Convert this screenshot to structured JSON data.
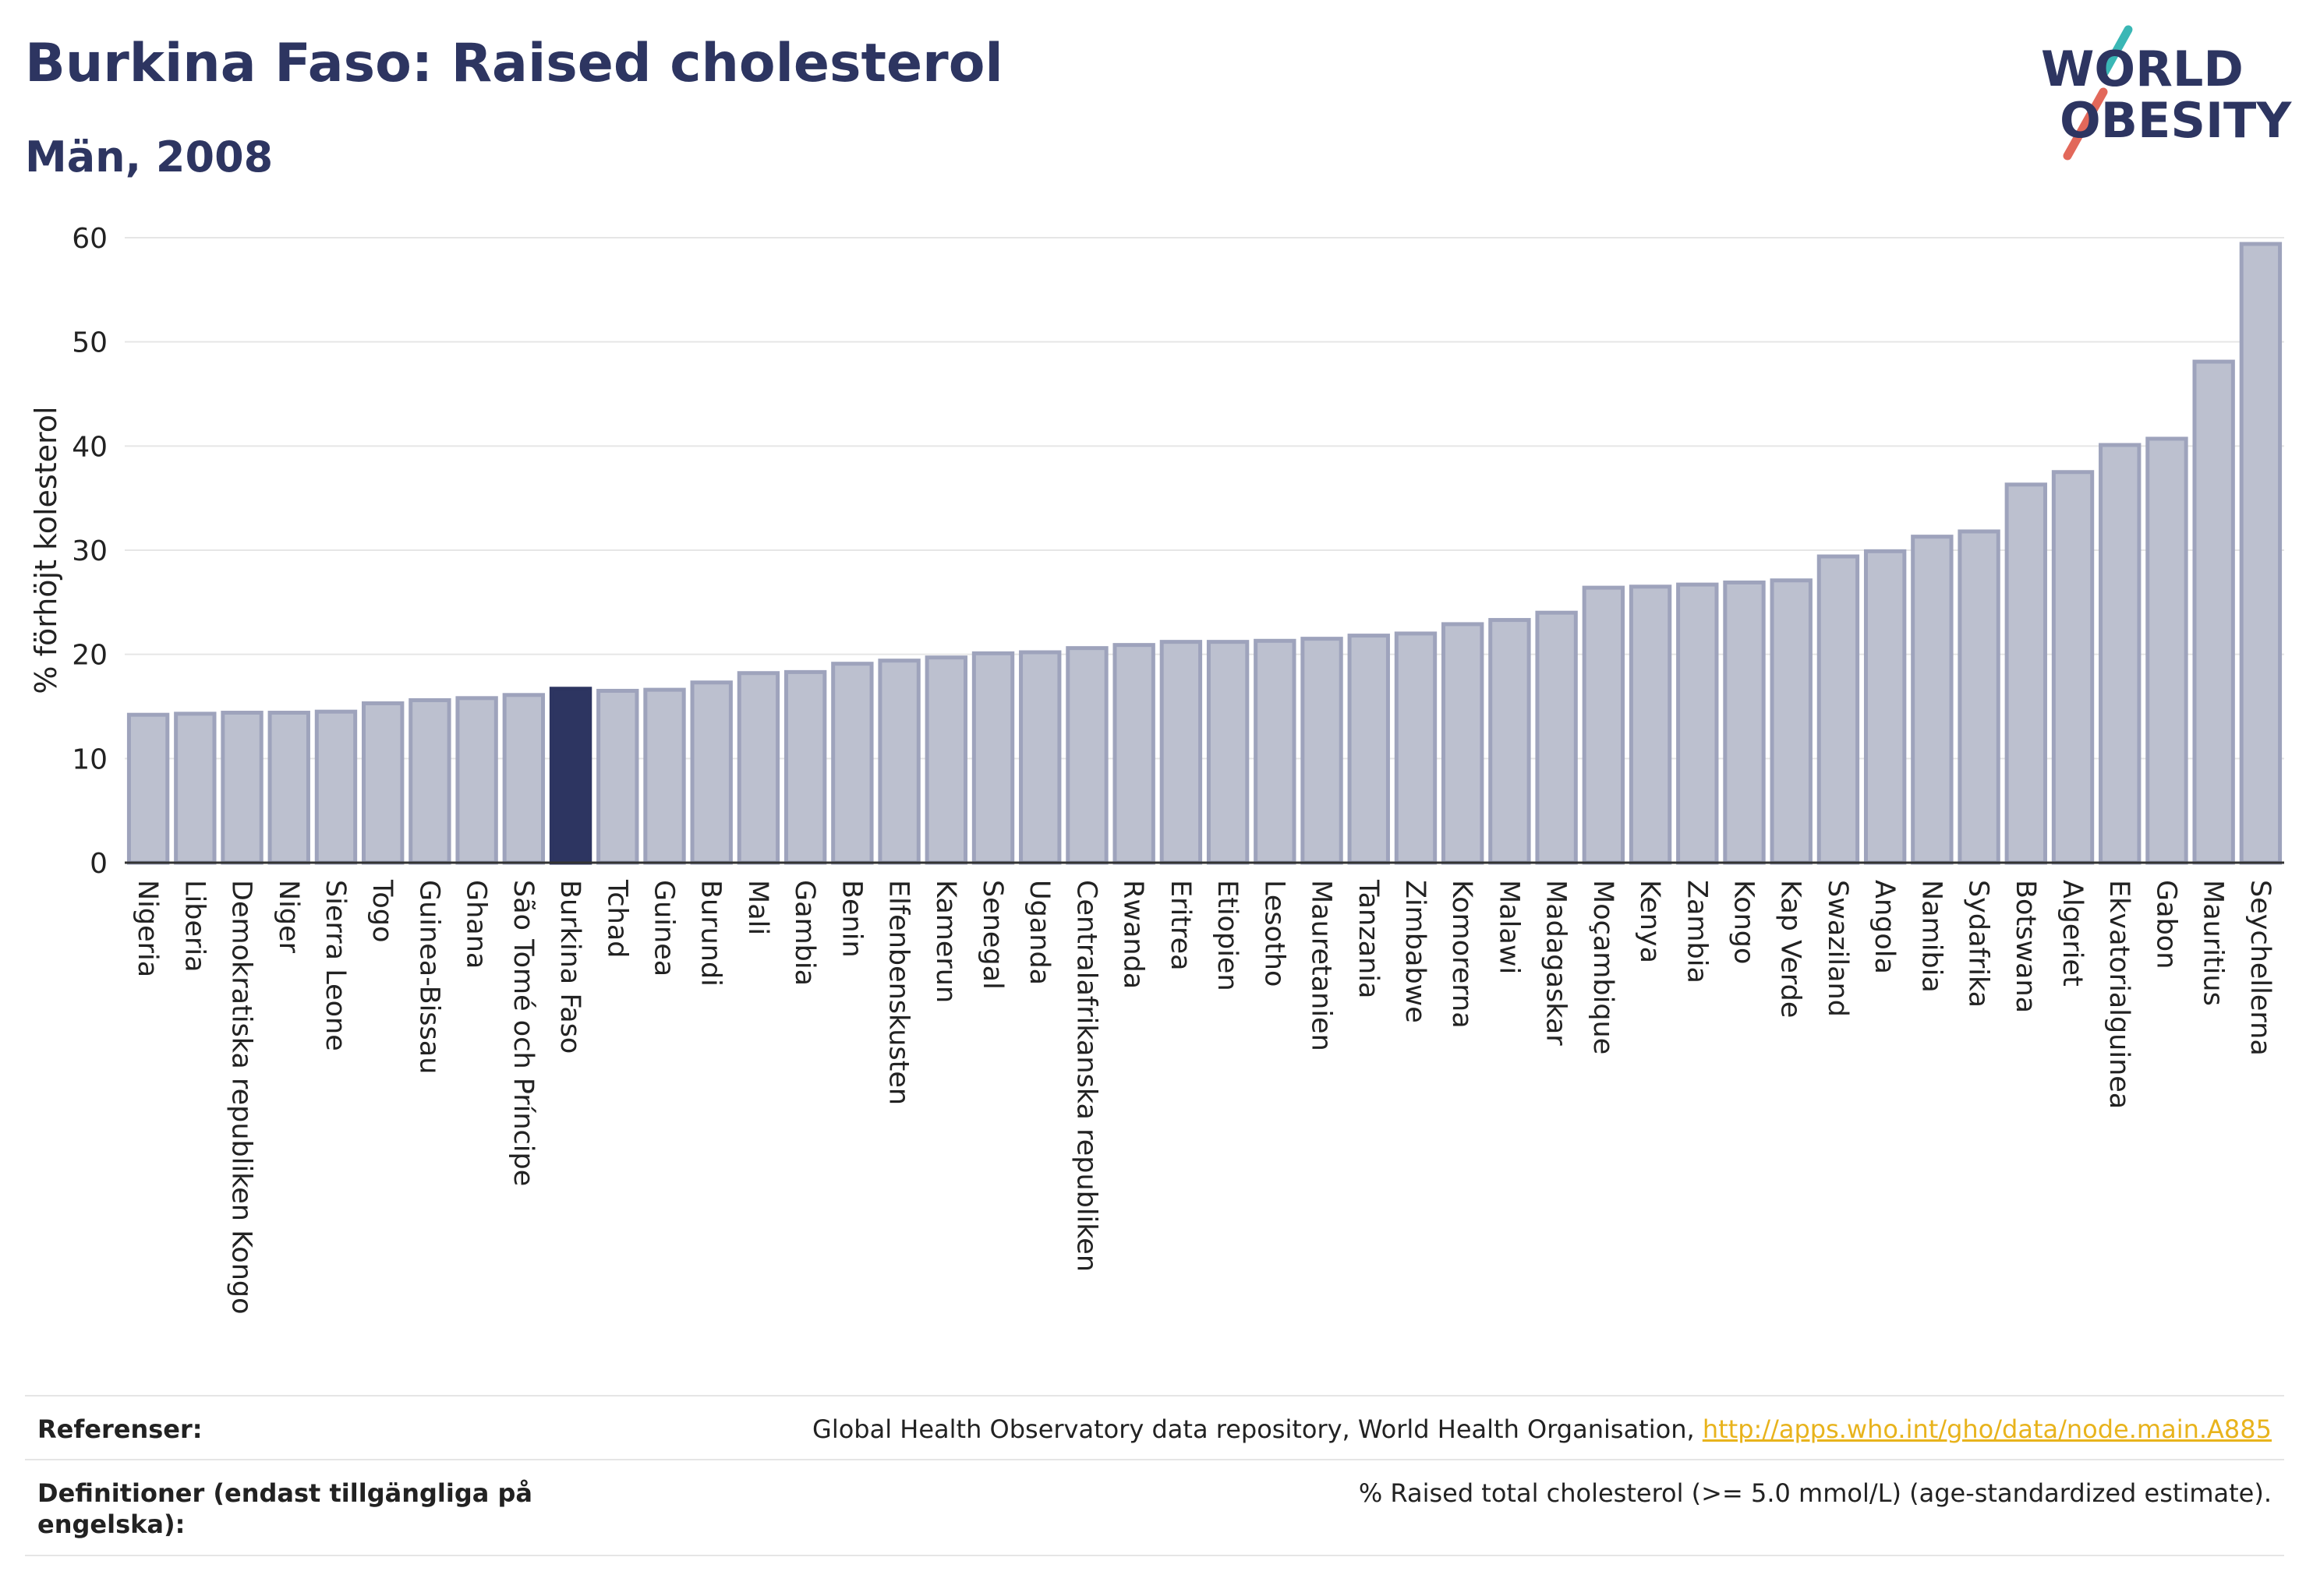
{
  "header": {
    "title": "Burkina Faso: Raised cholesterol",
    "subtitle": "Män, 2008"
  },
  "logo": {
    "line1": "WORLD",
    "line2": "OBESITY"
  },
  "colors": {
    "highlight": "#2d3561",
    "bar_fill": "#bcc0cf",
    "bar_stroke": "#9ea3bc",
    "grid": "#e6e6e6",
    "logo_teal": "#3ab7b5",
    "logo_red": "#e2685a",
    "link": "#e8b31c"
  },
  "chart_data": {
    "type": "bar",
    "ylabel": "% förhöjt kolesterol",
    "ylim": [
      0,
      60
    ],
    "yticks": [
      0,
      10,
      20,
      30,
      40,
      50,
      60
    ],
    "grid": true,
    "highlight": "Burkina Faso",
    "categories": [
      "Nigeria",
      "Liberia",
      "Demokratiska republiken Kongo",
      "Niger",
      "Sierra Leone",
      "Togo",
      "Guinea-Bissau",
      "Ghana",
      "São Tomé och Príncipe",
      "Burkina Faso",
      "Tchad",
      "Guinea",
      "Burundi",
      "Mali",
      "Gambia",
      "Benin",
      "Elfenbenskusten",
      "Kamerun",
      "Senegal",
      "Uganda",
      "Centralafrikanska republiken",
      "Rwanda",
      "Eritrea",
      "Etiopien",
      "Lesotho",
      "Mauretanien",
      "Tanzania",
      "Zimbabwe",
      "Komorerna",
      "Malawi",
      "Madagaskar",
      "Moçambique",
      "Kenya",
      "Zambia",
      "Kongo",
      "Kap Verde",
      "Swaziland",
      "Angola",
      "Namibia",
      "Sydafrika",
      "Botswana",
      "Algeriet",
      "Ekvatorialguinea",
      "Gabon",
      "Mauritius",
      "Seychellerna"
    ],
    "values": [
      14.2,
      14.3,
      14.4,
      14.4,
      14.5,
      15.3,
      15.6,
      15.8,
      16.1,
      16.7,
      16.5,
      16.6,
      17.3,
      18.2,
      18.3,
      19.1,
      19.4,
      19.7,
      20.1,
      20.2,
      20.6,
      20.9,
      21.2,
      21.2,
      21.3,
      21.5,
      21.8,
      22.0,
      22.9,
      23.3,
      24.0,
      26.4,
      26.5,
      26.7,
      26.9,
      27.1,
      29.4,
      29.9,
      31.3,
      31.8,
      36.3,
      37.5,
      40.1,
      40.7,
      48.1,
      59.4
    ]
  },
  "footer": {
    "references_label": "Referenser:",
    "references_text": "Global Health Observatory data repository, World Health Organisation, ",
    "references_link": "http://apps.who.int/gho/data/node.main.A885",
    "definitions_label": "Definitioner (endast tillgängliga på engelska):",
    "definitions_text": "% Raised total cholesterol (>= 5.0 mmol/L) (age-standardized estimate)."
  }
}
